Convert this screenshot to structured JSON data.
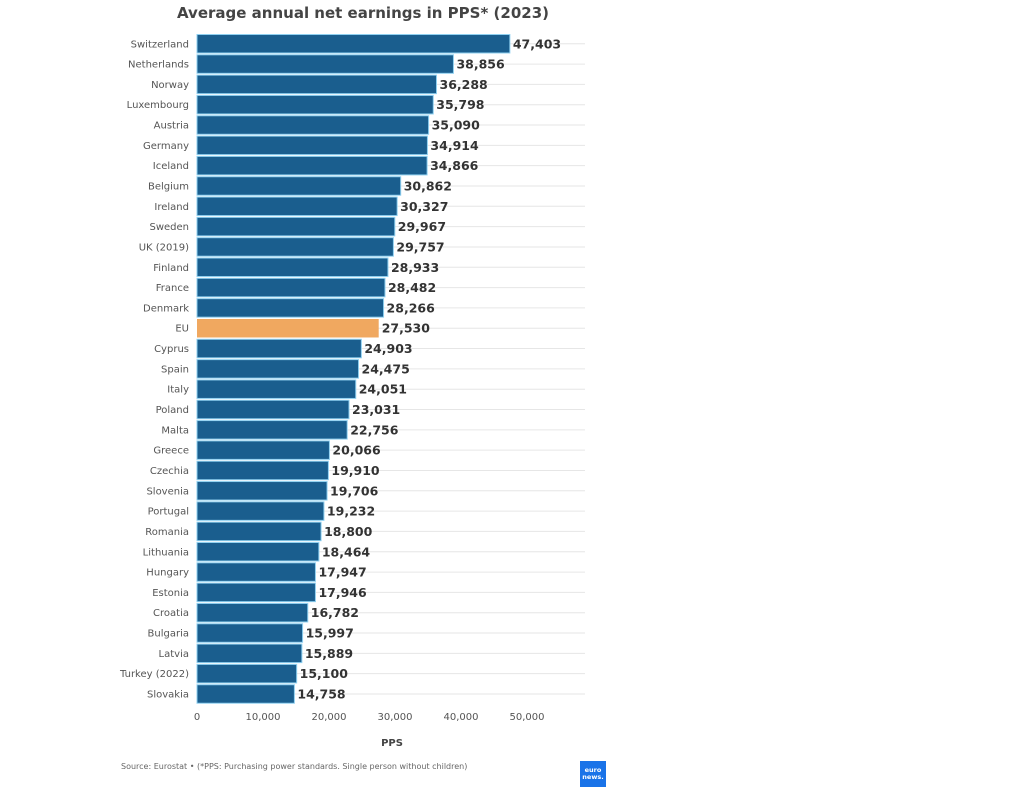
{
  "chart_data": {
    "type": "bar",
    "orientation": "horizontal",
    "title": "Average annual net earnings in PPS* (2023)",
    "xlabel": "PPS",
    "ylabel": "",
    "xlim": [
      0,
      58000
    ],
    "x_ticks": [
      0,
      10000,
      20000,
      30000,
      40000,
      50000
    ],
    "x_tick_labels": [
      "0",
      "10,000",
      "20,000",
      "30,000",
      "40,000",
      "50,000"
    ],
    "grid": true,
    "categories": [
      "Switzerland",
      "Netherlands",
      "Norway",
      "Luxembourg",
      "Austria",
      "Germany",
      "Iceland",
      "Belgium",
      "Ireland",
      "Sweden",
      "UK (2019)",
      "Finland",
      "France",
      "Denmark",
      "EU",
      "Cyprus",
      "Spain",
      "Italy",
      "Poland",
      "Malta",
      "Greece",
      "Czechia",
      "Slovenia",
      "Portugal",
      "Romania",
      "Lithuania",
      "Hungary",
      "Estonia",
      "Croatia",
      "Bulgaria",
      "Latvia",
      "Turkey (2022)",
      "Slovakia"
    ],
    "values": [
      47403,
      38856,
      36288,
      35798,
      35090,
      34914,
      34866,
      30862,
      30327,
      29967,
      29757,
      28933,
      28482,
      28266,
      27530,
      24903,
      24475,
      24051,
      23031,
      22756,
      20066,
      19910,
      19706,
      19232,
      18800,
      18464,
      17947,
      17946,
      16782,
      15997,
      15889,
      15100,
      14758
    ],
    "value_labels": [
      "47,403",
      "38,856",
      "36,288",
      "35,798",
      "35,090",
      "34,914",
      "34,866",
      "30,862",
      "30,327",
      "29,967",
      "29,757",
      "28,933",
      "28,482",
      "28,266",
      "27,530",
      "24,903",
      "24,475",
      "24,051",
      "23,031",
      "22,756",
      "20,066",
      "19,910",
      "19,706",
      "19,232",
      "18,800",
      "18,464",
      "17,947",
      "17,946",
      "16,782",
      "15,997",
      "15,889",
      "15,100",
      "14,758"
    ],
    "highlight": "EU",
    "colors": {
      "default": "#1a5e8e",
      "highlight": "#f0a860",
      "bar_outline": "#8fd0f0",
      "grid": "#e6e6e6"
    }
  },
  "footer": {
    "source": "Source: Eurostat • (*PPS: Purchasing power standards. Single person without children)",
    "logo_line1": "euro",
    "logo_line2": "news."
  }
}
